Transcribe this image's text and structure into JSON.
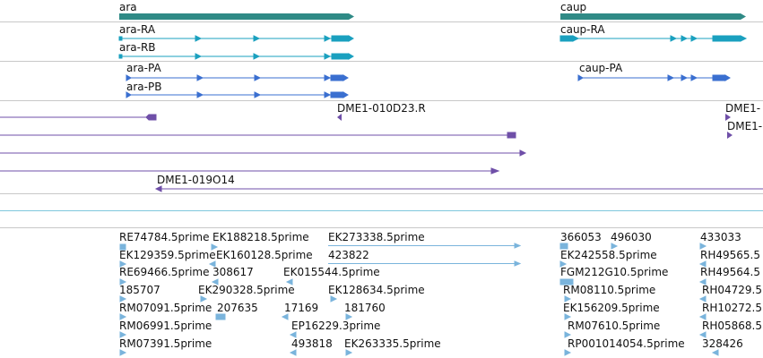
{
  "genes": {
    "ara": "ara",
    "caup": "caup"
  },
  "transcripts_ra": {
    "ara_ra": "ara-RA",
    "ara_rb": "ara-RB",
    "caup_ra": "caup-RA"
  },
  "transcripts_pa": {
    "ara_pa": "ara-PA",
    "ara_pb": "ara-PB",
    "caup_pa": "caup-PA"
  },
  "clones": {
    "c1": "DME1-010D23.R",
    "c2": "DME1-",
    "c3": "DME1-",
    "c4": "DME1-019O14"
  },
  "ests": [
    "RE74784.5prime",
    "EK188218.5prime",
    "EK273338.5prime",
    "EK129359.5prime",
    "EK160128.5prime",
    "423822",
    "RE69466.5prime",
    "308617",
    "EK015544.5prime",
    "185707",
    "EK290328.5prime",
    "EK128634.5prime",
    "RM07091.5prime",
    "207635",
    "17169",
    "181760",
    "RM06991.5prime",
    "EP16229.3prime",
    "RM07391.5prime",
    "493818",
    "EK263335.5prime",
    "366053",
    "496030",
    "433033",
    "EK242558.5prime",
    "RH49565.5",
    "FGM212G10.5prime",
    "RH49564.5",
    "RM08110.5prime",
    "RH04729.5",
    "EK156209.5prime",
    "RH10272.5",
    "RM07610.5prime",
    "RH05868.5",
    "RP001014054.5prime",
    "328426"
  ],
  "colors": {
    "gene": "#2f8a86",
    "transcript_rna": "#1aa0bf",
    "transcript_protein": "#3a6fd0",
    "clone": "#6f4fa8",
    "est": "#7ab4dc",
    "separator": "#c8c8c8",
    "track_line": "#7ec8dc"
  }
}
